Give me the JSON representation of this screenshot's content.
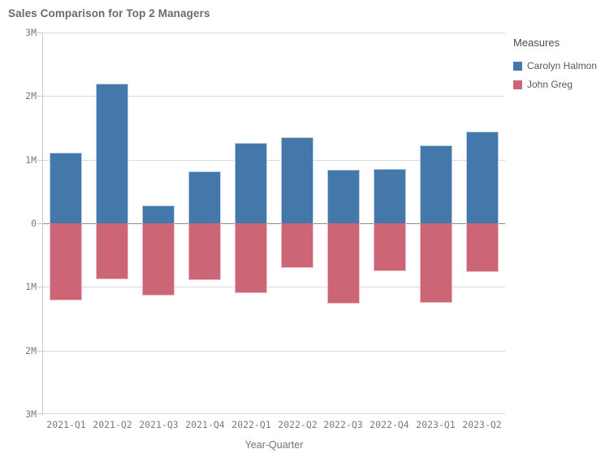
{
  "chart_data": {
    "type": "bar",
    "subtype": "diverging-mirrored",
    "title": "Sales Comparison for Top 2 Managers",
    "xlabel": "Year-Quarter",
    "ylabel": "",
    "legend_title": "Measures",
    "legend_position": "right",
    "grid": true,
    "ylim": [
      -3,
      3
    ],
    "y_unit": "M",
    "y_ticks": [
      {
        "label": "3M",
        "value": 3
      },
      {
        "label": "2M",
        "value": 2
      },
      {
        "label": "1M",
        "value": 1
      },
      {
        "label": "0",
        "value": 0
      },
      {
        "label": "1M",
        "value": -1
      },
      {
        "label": "2M",
        "value": -2
      },
      {
        "label": "3M",
        "value": -3
      }
    ],
    "categories": [
      "2021-Q1",
      "2021-Q2",
      "2021-Q3",
      "2021-Q4",
      "2022-Q1",
      "2022-Q2",
      "2022-Q3",
      "2022-Q4",
      "2023-Q1",
      "2023-Q2"
    ],
    "series": [
      {
        "name": "Carolyn Halmon",
        "direction": "up",
        "color": "#4477aa",
        "border_color": "#b9cfe4",
        "values_millions": [
          1.11,
          2.19,
          0.28,
          0.82,
          1.27,
          1.35,
          0.84,
          0.86,
          1.23,
          1.44
        ]
      },
      {
        "name": "John Greg",
        "direction": "down",
        "color": "#cc6677",
        "border_color": "#eebbc6",
        "values_millions": [
          1.21,
          0.88,
          1.13,
          0.89,
          1.1,
          0.7,
          1.26,
          0.75,
          1.25,
          0.77
        ]
      }
    ],
    "colors": {
      "title_text": "#6b6b6b",
      "tick_text": "#7b7b7b",
      "axis_title_text": "#737373",
      "legend_title_text": "#4c4c4c",
      "legend_item_text": "#595959",
      "gridline": "#d9d9d9",
      "zero_line": "#8c8c8c",
      "axis_line": "#c9c9c9",
      "background": "#ffffff"
    }
  }
}
